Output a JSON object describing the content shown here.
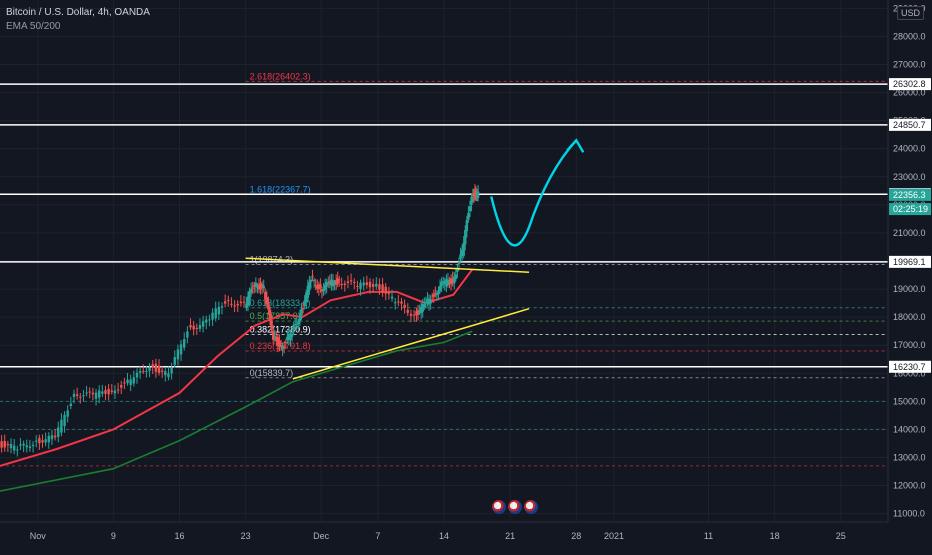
{
  "header": {
    "symbol_line": "Bitcoin / U.S. Dollar, 4h, OANDA",
    "indicator_line": "EMA 50/200",
    "currency_button": "USD"
  },
  "colors": {
    "background": "#131722",
    "up_candle": "#26a69a",
    "down_candle": "#ef5350",
    "ema50": "#f23645",
    "ema200": "#1b7d2f",
    "trendline": "#ffeb3b",
    "projection_arrow": "#00d4e8",
    "horizontal_level": "#ffffff",
    "grid": "#1e222d"
  },
  "chart_data": {
    "type": "candlestick",
    "title": "Bitcoin / U.S. Dollar, 4h, OANDA",
    "x_axis": {
      "tick_labels": [
        "Nov",
        "9",
        "16",
        "23",
        "Dec",
        "7",
        "14",
        "21",
        "28",
        "2021",
        "11",
        "18",
        "25"
      ],
      "tick_dates": [
        "2020-11-01",
        "2020-11-09",
        "2020-11-16",
        "2020-11-23",
        "2020-12-01",
        "2020-12-07",
        "2020-12-14",
        "2020-12-21",
        "2020-12-28",
        "2021-01-01",
        "2021-01-11",
        "2021-01-18",
        "2021-01-25"
      ],
      "range": [
        "2020-10-28",
        "2021-01-30"
      ]
    },
    "y_axis": {
      "ticks": [
        11000,
        12000,
        13000,
        14000,
        15000,
        16000,
        17000,
        18000,
        19000,
        20000,
        21000,
        22000,
        23000,
        24000,
        25000,
        26000,
        27000,
        28000,
        29000
      ],
      "range": [
        10700,
        29300
      ],
      "grid": true
    },
    "price_series": {
      "name": "BTCUSD 4h",
      "points": [
        [
          "2020-10-28",
          13500
        ],
        [
          "2020-10-30",
          13300
        ],
        [
          "2020-11-01",
          13600
        ],
        [
          "2020-11-03",
          13700
        ],
        [
          "2020-11-05",
          15300
        ],
        [
          "2020-11-07",
          15200
        ],
        [
          "2020-11-09",
          15400
        ],
        [
          "2020-11-11",
          15700
        ],
        [
          "2020-11-13",
          16300
        ],
        [
          "2020-11-15",
          15900
        ],
        [
          "2020-11-17",
          17600
        ],
        [
          "2020-11-19",
          17800
        ],
        [
          "2020-11-21",
          18600
        ],
        [
          "2020-11-23",
          18400
        ],
        [
          "2020-11-24",
          19200
        ],
        [
          "2020-11-25",
          19000
        ],
        [
          "2020-11-26",
          17300
        ],
        [
          "2020-11-27",
          16900
        ],
        [
          "2020-11-28",
          17500
        ],
        [
          "2020-11-29",
          18200
        ],
        [
          "2020-11-30",
          19400
        ],
        [
          "2020-12-01",
          19000
        ],
        [
          "2020-12-02",
          19200
        ],
        [
          "2020-12-03",
          19300
        ],
        [
          "2020-12-05",
          19100
        ],
        [
          "2020-12-07",
          19200
        ],
        [
          "2020-12-09",
          18500
        ],
        [
          "2020-12-11",
          18100
        ],
        [
          "2020-12-12",
          18400
        ],
        [
          "2020-12-13",
          18800
        ],
        [
          "2020-12-14",
          19200
        ],
        [
          "2020-12-15",
          19300
        ],
        [
          "2020-12-16",
          20300
        ],
        [
          "2020-12-17",
          22400
        ],
        [
          "2020-12-17T16:00",
          22356.3
        ]
      ]
    },
    "ema_series": [
      {
        "name": "EMA 50",
        "color": "#f23645",
        "points": [
          [
            "2020-10-28",
            12700
          ],
          [
            "2020-11-03",
            13300
          ],
          [
            "2020-11-09",
            14000
          ],
          [
            "2020-11-16",
            15300
          ],
          [
            "2020-11-20",
            16600
          ],
          [
            "2020-11-24",
            17700
          ],
          [
            "2020-11-27",
            18100
          ],
          [
            "2020-11-29",
            18000
          ],
          [
            "2020-12-02",
            18600
          ],
          [
            "2020-12-06",
            18900
          ],
          [
            "2020-12-09",
            18900
          ],
          [
            "2020-12-12",
            18500
          ],
          [
            "2020-12-15",
            18800
          ],
          [
            "2020-12-17",
            19700
          ]
        ]
      },
      {
        "name": "EMA 200",
        "color": "#1b7d2f",
        "points": [
          [
            "2020-10-28",
            11800
          ],
          [
            "2020-11-09",
            12600
          ],
          [
            "2020-11-16",
            13600
          ],
          [
            "2020-11-23",
            14800
          ],
          [
            "2020-11-28",
            15700
          ],
          [
            "2020-12-03",
            16200
          ],
          [
            "2020-12-09",
            16800
          ],
          [
            "2020-12-14",
            17100
          ],
          [
            "2020-12-17",
            17500
          ]
        ]
      }
    ],
    "horizontal_levels": [
      16230.7,
      19969.1,
      22379.0,
      24850.7,
      26302.8
    ],
    "price_tags": [
      {
        "value": 26302.8,
        "label": "26302.8",
        "style": "level"
      },
      {
        "value": 24850.7,
        "label": "24850.7",
        "style": "level"
      },
      {
        "value": 22379.0,
        "label": "22379.0",
        "style": "level"
      },
      {
        "value": 22356.3,
        "label": "22356.3",
        "style": "last-price"
      },
      {
        "value": 21850,
        "label": "02:25:19",
        "style": "countdown"
      },
      {
        "value": 19969.1,
        "label": "19969.1",
        "style": "level"
      },
      {
        "value": 16230.7,
        "label": "16230.7",
        "style": "level"
      }
    ],
    "fibonacci": {
      "anchor_date": "2020-11-23",
      "end_date": "2021-01-30",
      "levels": [
        {
          "label": "0(15839.7)",
          "value": 15839.7,
          "color": "#b2b5be"
        },
        {
          "label": "0.236(16791.8)",
          "value": 16791.8,
          "color": "#f23645"
        },
        {
          "label": "0.382(17380.9)",
          "value": 17380.9,
          "color": "#ffffff"
        },
        {
          "label": "0.5(17857.0)",
          "value": 17857.0,
          "color": "#4caf50"
        },
        {
          "label": "0.618(18333.1)",
          "value": 18333.1,
          "color": "#26a69a"
        },
        {
          "label": "1(19874.3)",
          "value": 19874.3,
          "color": "#b2b5be"
        },
        {
          "label": "1.618(22367.7)",
          "value": 22367.7,
          "color": "#2196f3"
        },
        {
          "label": "2.618(26402.3)",
          "value": 26402.3,
          "color": "#f23645"
        }
      ],
      "extra_dashed_levels": [
        15000,
        14000,
        12700
      ]
    },
    "trendlines": [
      {
        "name": "upper",
        "from": [
          "2020-11-23",
          20100
        ],
        "to": [
          "2020-12-23",
          19600
        ]
      },
      {
        "name": "lower",
        "from": [
          "2020-11-28",
          15800
        ],
        "to": [
          "2020-12-23",
          18300
        ]
      }
    ],
    "projection": {
      "points": [
        [
          "2020-12-19",
          22300
        ],
        [
          "2020-12-21",
          20900
        ],
        [
          "2020-12-23",
          21200
        ],
        [
          "2020-12-25",
          23600
        ],
        [
          "2020-12-28",
          24300
        ]
      ]
    },
    "event_badges": [
      "9",
      "8",
      "2"
    ]
  }
}
